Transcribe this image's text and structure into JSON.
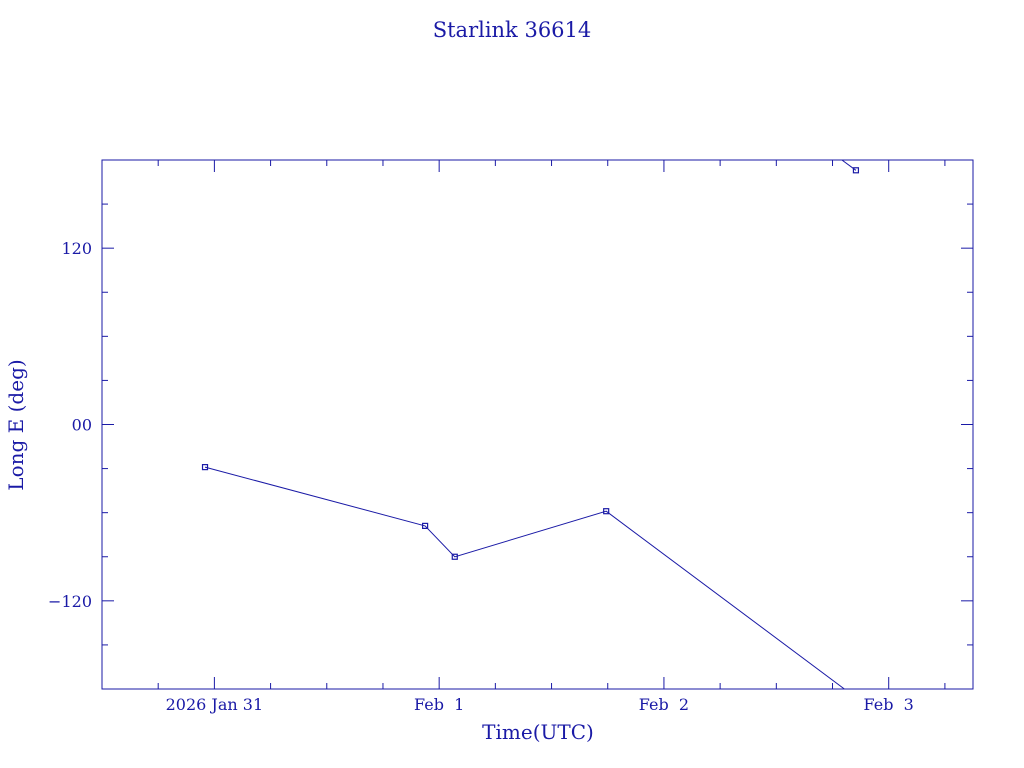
{
  "chart_data": {
    "type": "line",
    "title": "Starlink 36614",
    "xlabel": "Time(UTC)",
    "ylabel": "Long E (deg)",
    "x_unit": "days",
    "xlim": [
      "2026-01-30T12:00:00Z",
      "2026-02-03T09:00:00Z"
    ],
    "ylim": [
      -180,
      180
    ],
    "x_ticks": [
      {
        "value": "2026-01-31T00:00:00Z",
        "label": "2026 Jan 31"
      },
      {
        "value": "2026-02-01T00:00:00Z",
        "label": "Feb  1"
      },
      {
        "value": "2026-02-02T00:00:00Z",
        "label": "Feb  2"
      },
      {
        "value": "2026-02-03T00:00:00Z",
        "label": "Feb  3"
      }
    ],
    "y_ticks": [
      {
        "value": 120,
        "label": "120"
      },
      {
        "value": 0,
        "label": "00"
      },
      {
        "value": -120,
        "label": "−120"
      }
    ],
    "x_minor_hours": 6,
    "y_minor_step": 30,
    "grid": false,
    "series": [
      {
        "values": [
          {
            "x": "2026-01-30T23:00:00Z",
            "y": -29
          },
          {
            "x": "2026-01-31T22:30:00Z",
            "y": -69
          },
          {
            "x": "2026-02-01T01:40:00Z",
            "y": -90
          },
          {
            "x": "2026-02-01T17:50:00Z",
            "y": -59
          },
          {
            "x": "2026-02-02T19:16:00Z",
            "y": -180
          },
          {
            "break": true
          },
          {
            "x": "2026-02-02T19:00:00Z",
            "y": 180
          },
          {
            "x": "2026-02-02T20:30:00Z",
            "y": 173
          }
        ]
      }
    ]
  }
}
